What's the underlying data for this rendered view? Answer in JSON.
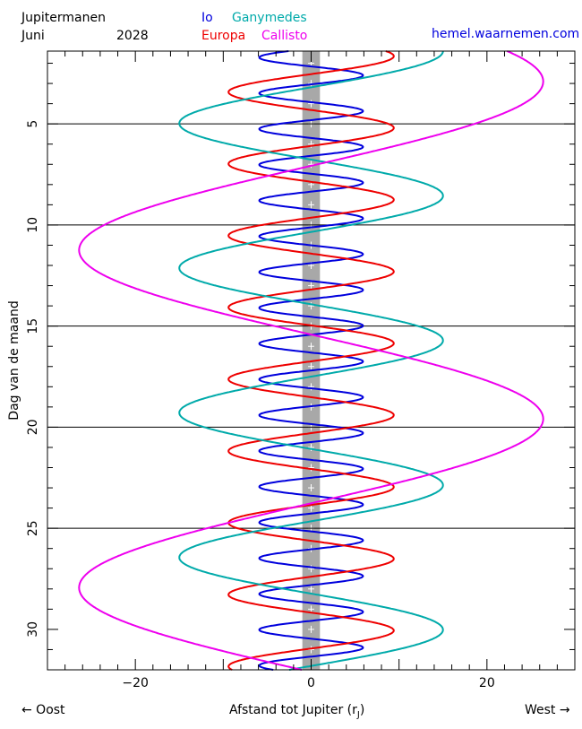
{
  "header": {
    "title": "Jupitermanen",
    "month": "Juni",
    "year": "2028",
    "site": "hemel.waarnemen.com"
  },
  "legend": {
    "io": "Io",
    "ganymedes": "Ganymedes",
    "europa": "Europa",
    "callisto": "Callisto"
  },
  "footer": {
    "left": "← Oost",
    "center": "Afstand tot Jupiter (r",
    "center_sub": "J",
    "center_end": ")",
    "right": "West →"
  },
  "chart_data": {
    "type": "line",
    "ylabel": "Dag van de maand",
    "xlabel": "Afstand tot Jupiter (rJ)",
    "xlim": [
      -30,
      30
    ],
    "ylim": [
      1.4,
      32
    ],
    "y_reversed": true,
    "x_ticks": [
      -20,
      0,
      20
    ],
    "y_ticks": [
      5,
      10,
      15,
      20,
      25,
      30
    ],
    "horizontal_lines_at": [
      5,
      10,
      15,
      20,
      25
    ],
    "jupiter_band_halfwidth": 1,
    "series": [
      {
        "name": "Io",
        "color": "#0000dd",
        "amplitude": 5.9,
        "period_days": 1.769,
        "phase_day": 2.6
      },
      {
        "name": "Europa",
        "color": "#ee0000",
        "amplitude": 9.4,
        "period_days": 3.551,
        "phase_day": 1.65
      },
      {
        "name": "Ganymedes",
        "color": "#00aaaa",
        "amplitude": 15.0,
        "period_days": 7.155,
        "phase_day": 1.4
      },
      {
        "name": "Callisto",
        "color": "#ee00ee",
        "amplitude": 26.4,
        "period_days": 16.69,
        "phase_day": 2.9
      }
    ]
  }
}
